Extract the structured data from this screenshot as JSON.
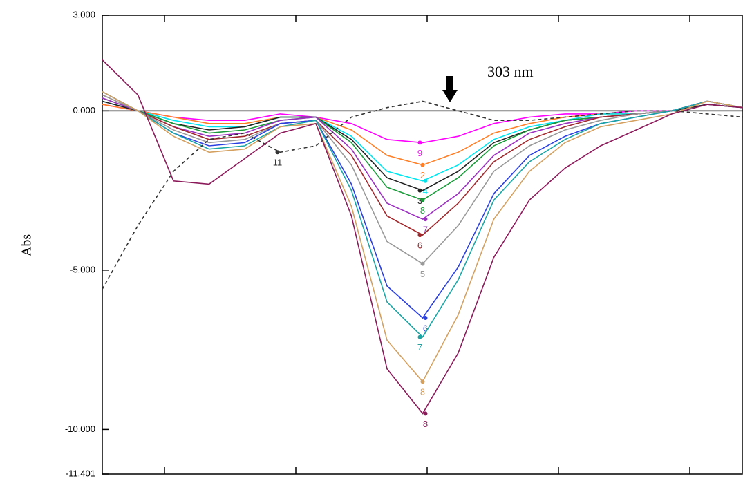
{
  "chart_data": {
    "type": "line",
    "y_label": "Abs",
    "annotation": "303 nm",
    "categories": [
      null,
      null,
      null,
      null,
      null,
      null,
      null,
      null,
      null,
      null,
      null,
      null,
      null,
      null,
      null,
      null,
      null,
      null,
      null
    ],
    "ylim": [
      -11.401,
      3.0
    ],
    "yticks": [
      {
        "value": 3.0,
        "label": "3.000"
      },
      {
        "value": 0,
        "label": "0.000"
      },
      {
        "value": -5,
        "label": "-5.000"
      },
      {
        "value": -10,
        "label": "-10.000"
      },
      {
        "value": -11.401,
        "label": "-11.401"
      }
    ],
    "series": [
      {
        "name": "9",
        "color": "#ff00ff",
        "values": [
          0.2,
          0.0,
          -0.2,
          -0.3,
          -0.3,
          -0.1,
          -0.2,
          -0.4,
          -0.9,
          -1.0,
          -0.8,
          -0.4,
          -0.2,
          -0.1,
          -0.1,
          0.0,
          0.0,
          0.2,
          0.1
        ]
      },
      {
        "name": "2",
        "color": "#ff7f27",
        "values": [
          0.2,
          0.0,
          -0.2,
          -0.4,
          -0.4,
          -0.2,
          -0.2,
          -0.6,
          -1.4,
          -1.7,
          -1.3,
          -0.7,
          -0.4,
          -0.2,
          -0.1,
          -0.1,
          0.0,
          0.2,
          0.1
        ]
      },
      {
        "name": "4",
        "color": "#00e5ee",
        "values": [
          0.3,
          0.0,
          -0.3,
          -0.5,
          -0.5,
          -0.2,
          -0.2,
          -0.8,
          -1.9,
          -2.2,
          -1.7,
          -0.9,
          -0.5,
          -0.3,
          -0.1,
          -0.1,
          0.0,
          0.2,
          0.1
        ]
      },
      {
        "name": "3",
        "color": "#222222",
        "values": [
          0.3,
          0.0,
          -0.4,
          -0.6,
          -0.5,
          -0.2,
          -0.2,
          -0.9,
          -2.1,
          -2.5,
          -1.9,
          -1.0,
          -0.6,
          -0.3,
          -0.2,
          -0.1,
          0.0,
          0.2,
          0.1
        ]
      },
      {
        "name": "8",
        "color": "#1a9a3a",
        "values": [
          0.4,
          0.0,
          -0.4,
          -0.7,
          -0.6,
          -0.3,
          -0.2,
          -1.0,
          -2.4,
          -2.8,
          -2.1,
          -1.1,
          -0.6,
          -0.3,
          -0.2,
          -0.1,
          0.0,
          0.3,
          0.1
        ]
      },
      {
        "name": "7",
        "color": "#9b30c0",
        "values": [
          0.4,
          0.0,
          -0.5,
          -0.8,
          -0.7,
          -0.3,
          -0.2,
          -1.2,
          -2.9,
          -3.4,
          -2.6,
          -1.4,
          -0.7,
          -0.4,
          -0.2,
          -0.1,
          0.0,
          0.3,
          0.1
        ]
      },
      {
        "name": "6",
        "color": "#a0282c",
        "values": [
          0.5,
          0.0,
          -0.5,
          -0.9,
          -0.8,
          -0.4,
          -0.3,
          -1.4,
          -3.3,
          -3.9,
          -2.9,
          -1.6,
          -0.9,
          -0.5,
          -0.2,
          -0.1,
          0.0,
          0.3,
          0.1
        ]
      },
      {
        "name": "5",
        "color": "#999999",
        "values": [
          0.5,
          0.0,
          -0.6,
          -1.0,
          -0.9,
          -0.4,
          -0.3,
          -1.7,
          -4.1,
          -4.8,
          -3.6,
          -1.9,
          -1.1,
          -0.6,
          -0.3,
          -0.1,
          0.0,
          0.3,
          0.1
        ]
      },
      {
        "name": "6",
        "color": "#2a3fe0",
        "values": [
          0.6,
          0.0,
          -0.7,
          -1.1,
          -1.0,
          -0.4,
          -0.3,
          -2.3,
          -5.5,
          -6.5,
          -4.9,
          -2.6,
          -1.4,
          -0.8,
          -0.4,
          -0.2,
          0.0,
          0.3,
          0.1
        ]
      },
      {
        "name": "7",
        "color": "#1aa5a5",
        "values": [
          0.6,
          0.0,
          -0.7,
          -1.2,
          -1.1,
          -0.5,
          -0.3,
          -2.5,
          -6.0,
          -7.1,
          -5.3,
          -2.8,
          -1.6,
          -0.9,
          -0.4,
          -0.2,
          0.0,
          0.3,
          0.1
        ]
      },
      {
        "name": "8",
        "color": "#d4a060",
        "values": [
          0.6,
          0.0,
          -0.8,
          -1.3,
          -1.2,
          -0.5,
          -0.4,
          -3.0,
          -7.2,
          -8.5,
          -6.4,
          -3.4,
          -1.9,
          -1.0,
          -0.5,
          -0.3,
          -0.1,
          0.3,
          0.1
        ]
      },
      {
        "name": "8",
        "color": "#8b1a5a",
        "values": [
          1.6,
          0.5,
          -2.2,
          -2.3,
          -1.5,
          -0.7,
          -0.4,
          -3.3,
          -8.1,
          -9.5,
          -7.6,
          -4.6,
          -2.8,
          -1.8,
          -1.1,
          -0.6,
          -0.1,
          0.2,
          0.1
        ]
      },
      {
        "name": "11",
        "color": "#333333",
        "dashed": true,
        "values": [
          -5.6,
          -3.6,
          -1.9,
          -0.9,
          -0.7,
          -1.3,
          -1.1,
          -0.2,
          0.1,
          0.3,
          0.0,
          -0.3,
          -0.3,
          -0.2,
          -0.1,
          0.0,
          0.0,
          -0.1,
          -0.2
        ]
      }
    ]
  }
}
